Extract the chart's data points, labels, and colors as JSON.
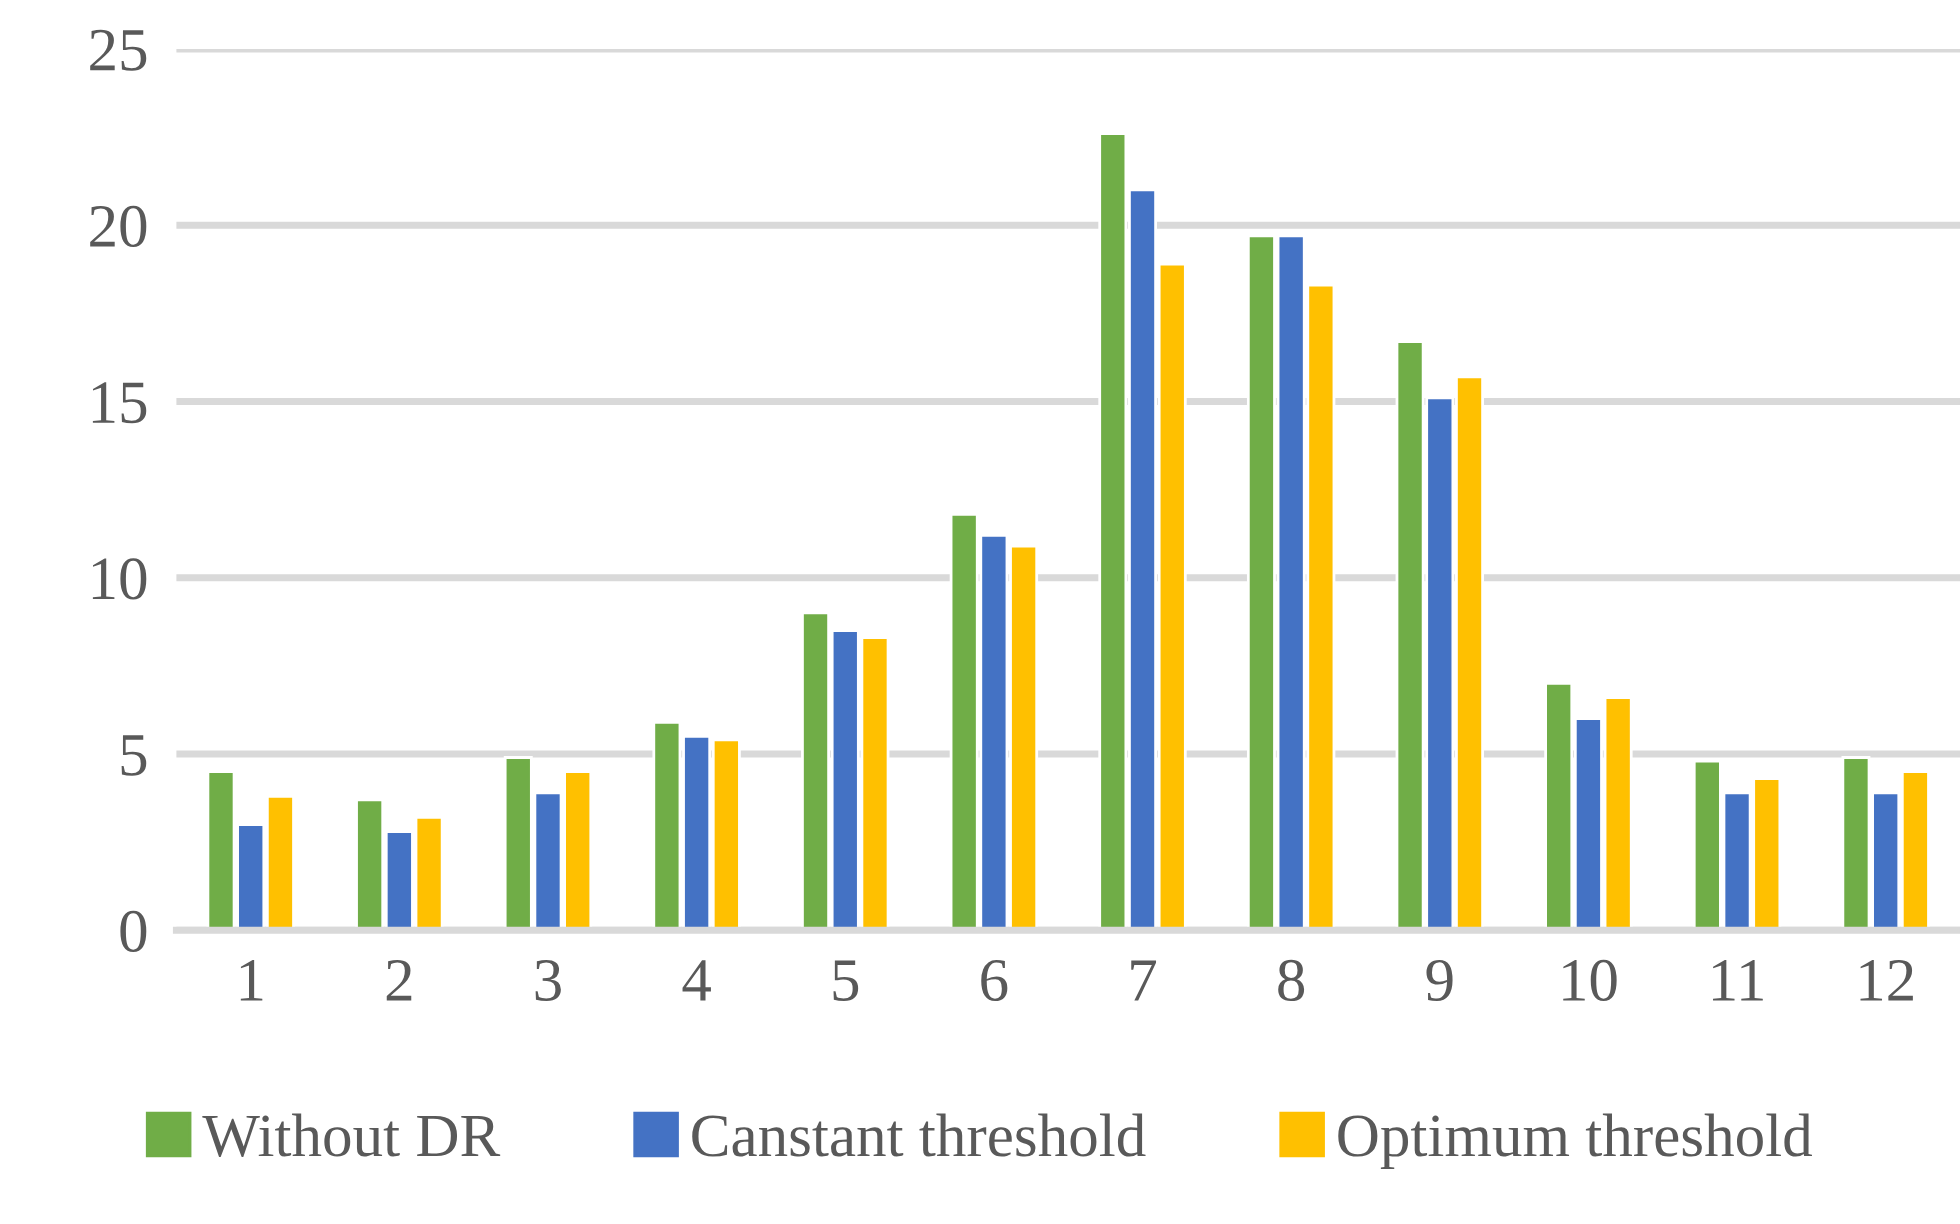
{
  "chart_data": {
    "type": "bar",
    "categories": [
      "1",
      "2",
      "3",
      "4",
      "5",
      "6",
      "7",
      "8",
      "9",
      "10",
      "11",
      "12"
    ],
    "series": [
      {
        "name": "Without DR",
        "color": "#70ad47",
        "values": [
          4.5,
          3.7,
          4.9,
          5.9,
          9.0,
          11.8,
          22.6,
          19.7,
          16.7,
          7.0,
          4.8,
          4.9
        ]
      },
      {
        "name": "Canstant threshold",
        "color": "#4472c4",
        "values": [
          3.0,
          2.8,
          3.9,
          5.5,
          8.5,
          11.2,
          21.0,
          19.7,
          15.1,
          6.0,
          3.9,
          3.9
        ]
      },
      {
        "name": "Optimum threshold",
        "color": "#ffc000",
        "values": [
          3.8,
          3.2,
          4.5,
          5.4,
          8.3,
          10.9,
          18.9,
          18.3,
          15.7,
          6.6,
          4.3,
          4.5
        ]
      }
    ],
    "ylim": [
      0,
      25
    ],
    "yticks": [
      0,
      5,
      10,
      15,
      20,
      25
    ],
    "grid": "y",
    "legend": "bottom"
  }
}
